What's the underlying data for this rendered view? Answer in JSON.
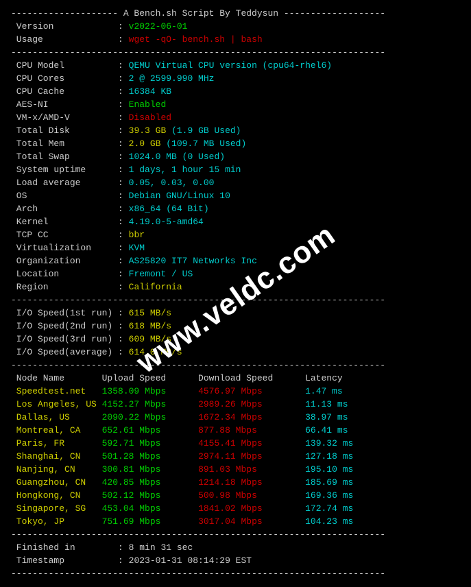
{
  "header": {
    "title_line": "-------------------- A Bench.sh Script By Teddysun -------------------",
    "version_label": " Version",
    "version_value": "v2022-06-01",
    "usage_label": " Usage",
    "usage_value": "wget -qO- bench.sh | bash"
  },
  "divider": "----------------------------------------------------------------------",
  "sys": {
    "cpu_model_label": " CPU Model",
    "cpu_model_value": "QEMU Virtual CPU version (cpu64-rhel6)",
    "cpu_cores_label": " CPU Cores",
    "cpu_cores_value": "2 @ 2599.990 MHz",
    "cpu_cache_label": " CPU Cache",
    "cpu_cache_value": "16384 KB",
    "aesni_label": " AES-NI",
    "aesni_value": "Enabled",
    "vmx_label": " VM-x/AMD-V",
    "vmx_value": "Disabled",
    "disk_label": " Total Disk",
    "disk_value": "39.3 GB",
    "disk_used": "(1.9 GB Used)",
    "mem_label": " Total Mem",
    "mem_value": "2.0 GB",
    "mem_used": "(109.7 MB Used)",
    "swap_label": " Total Swap",
    "swap_value": "1024.0 MB (0 Used)",
    "uptime_label": " System uptime",
    "uptime_value": "1 days, 1 hour 15 min",
    "load_label": " Load average",
    "load_value": "0.05, 0.03, 0.00",
    "os_label": " OS",
    "os_value": "Debian GNU/Linux 10",
    "arch_label": " Arch",
    "arch_value": "x86_64 (64 Bit)",
    "kernel_label": " Kernel",
    "kernel_value": "4.19.0-5-amd64",
    "tcpcc_label": " TCP CC",
    "tcpcc_value": "bbr",
    "virt_label": " Virtualization",
    "virt_value": "KVM",
    "org_label": " Organization",
    "org_value": "AS25820 IT7 Networks Inc",
    "loc_label": " Location",
    "loc_value": "Fremont / US",
    "region_label": " Region",
    "region_value": "California"
  },
  "io": {
    "run1_label": " I/O Speed(1st run)",
    "run1_value": "615 MB/s",
    "run2_label": " I/O Speed(2nd run)",
    "run2_value": "618 MB/s",
    "run3_label": " I/O Speed(3rd run)",
    "run3_value": "609 MB/s",
    "avg_label": " I/O Speed(average)",
    "avg_value": "614.0 MB/s"
  },
  "speedtest": {
    "header_node": " Node Name",
    "header_up": "Upload Speed",
    "header_down": "Download Speed",
    "header_lat": "Latency",
    "rows": [
      {
        "node": "Speedtest.net",
        "up": "1358.09 Mbps",
        "down": "4576.97 Mbps",
        "lat": "1.47 ms"
      },
      {
        "node": "Los Angeles, US",
        "up": "4152.27 Mbps",
        "down": "2989.26 Mbps",
        "lat": "11.13 ms"
      },
      {
        "node": "Dallas, US",
        "up": "2090.22 Mbps",
        "down": "1672.34 Mbps",
        "lat": "38.97 ms"
      },
      {
        "node": "Montreal, CA",
        "up": "652.61 Mbps",
        "down": "877.88 Mbps",
        "lat": "66.41 ms"
      },
      {
        "node": "Paris, FR",
        "up": "592.71 Mbps",
        "down": "4155.41 Mbps",
        "lat": "139.32 ms"
      },
      {
        "node": "Shanghai, CN",
        "up": "501.28 Mbps",
        "down": "2974.11 Mbps",
        "lat": "127.18 ms"
      },
      {
        "node": "Nanjing, CN",
        "up": "300.81 Mbps",
        "down": "891.03 Mbps",
        "lat": "195.10 ms"
      },
      {
        "node": "Guangzhou, CN",
        "up": "420.85 Mbps",
        "down": "1214.18 Mbps",
        "lat": "185.69 ms"
      },
      {
        "node": "Hongkong, CN",
        "up": "502.12 Mbps",
        "down": "500.98 Mbps",
        "lat": "169.36 ms"
      },
      {
        "node": "Singapore, SG",
        "up": "453.04 Mbps",
        "down": "1841.02 Mbps",
        "lat": "172.74 ms"
      },
      {
        "node": "Tokyo, JP",
        "up": "751.69 Mbps",
        "down": "3017.04 Mbps",
        "lat": "104.23 ms"
      }
    ]
  },
  "footer": {
    "finished_label": " Finished in",
    "finished_value": "8 min 31 sec",
    "timestamp_label": " Timestamp",
    "timestamp_value": "2023-01-31 08:14:29 EST"
  },
  "watermark": "www.veldc.com",
  "layout": {
    "label_pad": 20,
    "io_label_pad": 19,
    "node_pad": 17,
    "up_pad": 18,
    "down_pad": 20,
    "lat_pad": 13
  }
}
